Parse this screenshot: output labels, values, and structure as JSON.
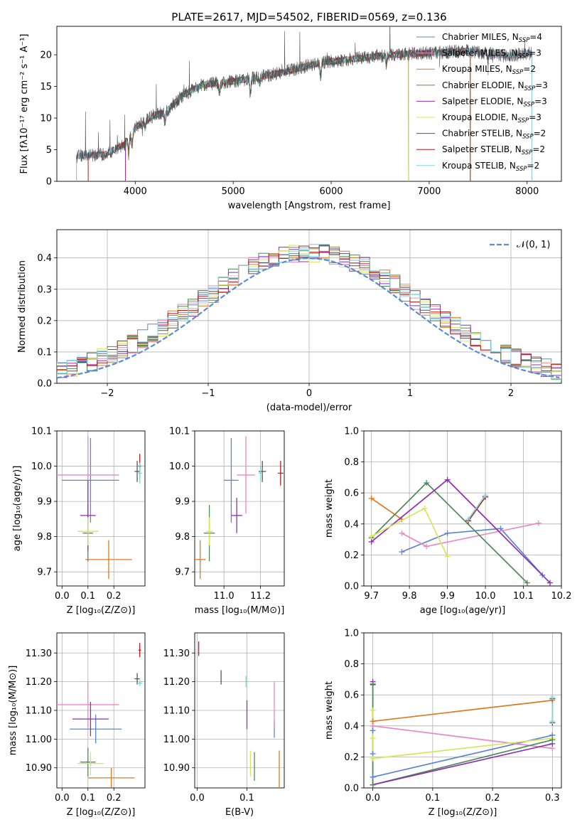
{
  "figure_title": "PLATE=2617, MJD=54502, FIBERID=0569, z=0.136",
  "colors": {
    "Chabrier MILES": "#5b84d4",
    "Salpeter MILES": "#e888c6",
    "Kroupa MILES": "#e07820",
    "Chabrier ELODIE": "#4f8a5a",
    "Salpeter ELODIE": "#8f2fb0",
    "Kroupa ELODIE": "#d5e65a",
    "Chabrier STELIB": "#555555",
    "Salpeter STELIB": "#b81c1c",
    "Kroupa STELIB": "#82d6dc",
    "normal": "#5b8bd6"
  },
  "legend_models": [
    {
      "key": "Chabrier MILES",
      "label": "Chabrier MILES, N",
      "sub": "SSP",
      "tail": "=4"
    },
    {
      "key": "Salpeter MILES",
      "label": "Salpeter MILES, N",
      "sub": "SSP",
      "tail": "=3"
    },
    {
      "key": "Kroupa MILES",
      "label": "Kroupa MILES, N",
      "sub": "SSP",
      "tail": "=2"
    },
    {
      "key": "Chabrier ELODIE",
      "label": "Chabrier ELODIE, N",
      "sub": "SSP",
      "tail": "=3"
    },
    {
      "key": "Salpeter ELODIE",
      "label": "Salpeter ELODIE, N",
      "sub": "SSP",
      "tail": "=3"
    },
    {
      "key": "Kroupa ELODIE",
      "label": "Kroupa ELODIE, N",
      "sub": "SSP",
      "tail": "=3"
    },
    {
      "key": "Chabrier STELIB",
      "label": "Chabrier STELIB, N",
      "sub": "SSP",
      "tail": "=2"
    },
    {
      "key": "Salpeter STELIB",
      "label": "Salpeter STELIB, N",
      "sub": "SSP",
      "tail": "=2"
    },
    {
      "key": "Kroupa STELIB",
      "label": "Kroupa STELIB, N",
      "sub": "SSP",
      "tail": "=2"
    }
  ],
  "chart_data": [
    {
      "id": "spectrum",
      "type": "line",
      "xlabel": "wavelength [Angstrom, rest frame]",
      "ylabel": "Flux [fλ10⁻¹⁷ erg cm⁻² s⁻¹ A⁻¹]",
      "xlim": [
        3200,
        8350
      ],
      "ylim": [
        0,
        24.5
      ],
      "xticks": [
        4000,
        5000,
        6000,
        7000,
        8000
      ],
      "yticks": [
        0,
        5,
        10,
        15,
        20
      ],
      "continuum_knots": [
        [
          3400,
          4.0
        ],
        [
          3700,
          4.3
        ],
        [
          3900,
          6.0
        ],
        [
          4000,
          8.5
        ],
        [
          4200,
          10.5
        ],
        [
          4300,
          10.8
        ],
        [
          4500,
          13.8
        ],
        [
          4700,
          15.3
        ],
        [
          5000,
          15.8
        ],
        [
          5200,
          16.3
        ],
        [
          5500,
          17.2
        ],
        [
          5900,
          18.8
        ],
        [
          6200,
          19.3
        ],
        [
          6600,
          20.0
        ],
        [
          7000,
          20.3
        ],
        [
          7400,
          20.6
        ],
        [
          7800,
          19.8
        ],
        [
          8050,
          20.3
        ]
      ],
      "absorption_features": [
        [
          3934,
          -2.5
        ],
        [
          3968,
          -2.0
        ],
        [
          4101,
          -1.2
        ],
        [
          4304,
          -1.8
        ],
        [
          4861,
          -1.8
        ],
        [
          5175,
          -2.6
        ],
        [
          5270,
          -1.0
        ],
        [
          5892,
          -2.4
        ],
        [
          6563,
          -1.6
        ],
        [
          7600,
          -1.0
        ]
      ],
      "model_edges": [
        {
          "key": "Kroupa MILES",
          "from": 3520,
          "to": 7420
        },
        {
          "key": "Chabrier MILES",
          "from": 3400,
          "to": 8050
        },
        {
          "key": "Salpeter MILES",
          "from": 3400,
          "to": 8050
        },
        {
          "key": "Chabrier ELODIE",
          "from": 3900,
          "to": 6790
        },
        {
          "key": "Salpeter ELODIE",
          "from": 3900,
          "to": 6790
        },
        {
          "key": "Kroupa ELODIE",
          "from": 3910,
          "to": 6790
        },
        {
          "key": "Salpeter STELIB",
          "from": 3520,
          "to": 7420
        },
        {
          "key": "Kroupa STELIB",
          "from": 3400,
          "to": 8050
        }
      ]
    },
    {
      "id": "residuals",
      "type": "histogram",
      "xlabel": "(data-model)/error",
      "ylabel": "Normed distribution",
      "xlim": [
        -2.5,
        2.5
      ],
      "ylim": [
        0,
        0.49
      ],
      "xticks": [
        -2,
        -1,
        0,
        1,
        2
      ],
      "yticks": [
        0.0,
        0.1,
        0.2,
        0.3,
        0.4
      ],
      "bin_width": 0.1,
      "legend": "𝒩(0, 1)",
      "reference": "normal(0,1)"
    },
    {
      "id": "age_vs_Z",
      "type": "errorbar",
      "xlabel": "Z [log₁₀(Z/Z⊙)]",
      "ylabel": "age  [log₁₀(age/yr)]",
      "xlim": [
        -0.02,
        0.32
      ],
      "ylim": [
        9.66,
        10.1
      ],
      "xticks": [
        0.0,
        0.1,
        0.2
      ],
      "yticks": [
        9.7,
        9.8,
        9.9,
        10.0,
        10.1
      ],
      "points": [
        {
          "key": "Chabrier MILES",
          "x": 0.11,
          "xerr": 0.11,
          "y": 9.96,
          "yerr": 0.12
        },
        {
          "key": "Salpeter MILES",
          "x": 0.1,
          "xerr": 0.12,
          "y": 9.975,
          "yerr": 0.11
        },
        {
          "key": "Kroupa MILES",
          "x": 0.18,
          "xerr": 0.09,
          "y": 9.735,
          "yerr": 0.055
        },
        {
          "key": "Chabrier ELODIE",
          "x": 0.1,
          "xerr": 0.02,
          "y": 9.81,
          "yerr": 0.08
        },
        {
          "key": "Salpeter ELODIE",
          "x": 0.1,
          "xerr": 0.03,
          "y": 9.86,
          "yerr": 0.1
        },
        {
          "key": "Kroupa ELODIE",
          "x": 0.1,
          "xerr": 0.04,
          "y": 9.815,
          "yerr": 0.04
        },
        {
          "key": "Chabrier STELIB",
          "x": 0.29,
          "xerr": 0.01,
          "y": 9.985,
          "yerr": 0.03
        },
        {
          "key": "Salpeter STELIB",
          "x": 0.3,
          "xerr": 0.005,
          "y": 10.0,
          "yerr": 0.035
        },
        {
          "key": "Kroupa STELIB",
          "x": 0.3,
          "xerr": 0.01,
          "y": 9.98,
          "yerr": 0.03
        }
      ]
    },
    {
      "id": "age_vs_mass",
      "type": "errorbar",
      "xlabel": "mass [log₁₀(M/M⊙)]",
      "ylabel": "",
      "xlim": [
        10.84,
        11.33
      ],
      "ylim": [
        9.66,
        10.1
      ],
      "xticks": [
        11.0,
        11.2
      ],
      "yticks": [
        9.7,
        9.8,
        9.9,
        10.0,
        10.1
      ],
      "points": [
        {
          "key": "Chabrier MILES",
          "x": 11.04,
          "xerr": 0.04,
          "y": 9.96,
          "yerr": 0.12
        },
        {
          "key": "Salpeter MILES",
          "x": 11.12,
          "xerr": 0.05,
          "y": 9.975,
          "yerr": 0.11
        },
        {
          "key": "Kroupa MILES",
          "x": 10.87,
          "xerr": 0.03,
          "y": 9.735,
          "yerr": 0.055
        },
        {
          "key": "Chabrier ELODIE",
          "x": 10.92,
          "xerr": 0.03,
          "y": 9.81,
          "yerr": 0.08
        },
        {
          "key": "Salpeter ELODIE",
          "x": 11.07,
          "xerr": 0.03,
          "y": 9.86,
          "yerr": 0.05
        },
        {
          "key": "Kroupa ELODIE",
          "x": 10.92,
          "xerr": 0.02,
          "y": 9.815,
          "yerr": 0.04
        },
        {
          "key": "Chabrier STELIB",
          "x": 11.21,
          "xerr": 0.02,
          "y": 9.985,
          "yerr": 0.03
        },
        {
          "key": "Salpeter STELIB",
          "x": 11.31,
          "xerr": 0.015,
          "y": 9.98,
          "yerr": 0.035
        },
        {
          "key": "Kroupa STELIB",
          "x": 11.2,
          "xerr": 0.01,
          "y": 9.98,
          "yerr": 0.02
        }
      ]
    },
    {
      "id": "massweight_vs_age",
      "type": "line",
      "xlabel": "age  [log₁₀(age/yr)]",
      "ylabel": "mass weight",
      "xlim": [
        9.68,
        10.2
      ],
      "ylim": [
        0,
        1.0
      ],
      "xticks": [
        9.7,
        9.8,
        9.9,
        10.0,
        10.1,
        10.2
      ],
      "yticks": [
        0.0,
        0.2,
        0.4,
        0.6,
        0.8,
        1.0
      ],
      "series": [
        {
          "key": "Chabrier MILES",
          "x": [
            9.78,
            9.9,
            10.04,
            10.15
          ],
          "y": [
            0.22,
            0.34,
            0.37,
            0.07
          ]
        },
        {
          "key": "Salpeter MILES",
          "x": [
            9.78,
            9.845,
            10.14
          ],
          "y": [
            0.34,
            0.255,
            0.405
          ]
        },
        {
          "key": "Kroupa MILES",
          "x": [
            9.7,
            9.78
          ],
          "y": [
            0.565,
            0.43
          ]
        },
        {
          "key": "Chabrier ELODIE",
          "x": [
            9.7,
            9.845,
            10.11
          ],
          "y": [
            0.31,
            0.665,
            0.02
          ]
        },
        {
          "key": "Salpeter ELODIE",
          "x": [
            9.7,
            9.9,
            10.17
          ],
          "y": [
            0.285,
            0.685,
            0.02
          ]
        },
        {
          "key": "Kroupa ELODIE",
          "x": [
            9.7,
            9.84,
            9.9
          ],
          "y": [
            0.32,
            0.5,
            0.19
          ]
        },
        {
          "key": "Chabrier STELIB",
          "x": [
            9.955,
            10.0
          ],
          "y": [
            0.42,
            0.575
          ]
        },
        {
          "key": "Salpeter STELIB",
          "x": [
            9.955,
            10.0
          ],
          "y": [
            0.42,
            0.575
          ]
        },
        {
          "key": "Kroupa STELIB",
          "x": [
            9.955,
            10.0
          ],
          "y": [
            0.43,
            0.585
          ]
        }
      ]
    },
    {
      "id": "mass_vs_Z",
      "type": "errorbar",
      "xlabel": "Z [log₁₀(Z/Z⊙)]",
      "ylabel": "mass [log₁₀(M/M⊙)]",
      "xlim": [
        -0.02,
        0.32
      ],
      "ylim": [
        10.83,
        11.37
      ],
      "xticks": [
        0.0,
        0.1,
        0.2
      ],
      "yticks": [
        10.9,
        11.0,
        11.1,
        11.2,
        11.3
      ],
      "points": [
        {
          "key": "Chabrier MILES",
          "x": 0.13,
          "xerr": 0.1,
          "y": 11.035,
          "yerr": 0.05
        },
        {
          "key": "Salpeter MILES",
          "x": 0.1,
          "xerr": 0.12,
          "y": 11.12,
          "yerr": 0.08
        },
        {
          "key": "Kroupa MILES",
          "x": 0.19,
          "xerr": 0.09,
          "y": 10.865,
          "yerr": 0.035
        },
        {
          "key": "Chabrier ELODIE",
          "x": 0.1,
          "xerr": 0.03,
          "y": 10.92,
          "yerr": 0.05
        },
        {
          "key": "Salpeter ELODIE",
          "x": 0.11,
          "xerr": 0.07,
          "y": 11.07,
          "yerr": 0.06
        },
        {
          "key": "Kroupa ELODIE",
          "x": 0.11,
          "xerr": 0.05,
          "y": 10.915,
          "yerr": 0.04
        },
        {
          "key": "Chabrier STELIB",
          "x": 0.29,
          "xerr": 0.01,
          "y": 11.21,
          "yerr": 0.02
        },
        {
          "key": "Salpeter STELIB",
          "x": 0.3,
          "xerr": 0.005,
          "y": 11.31,
          "yerr": 0.025
        },
        {
          "key": "Kroupa STELIB",
          "x": 0.3,
          "xerr": 0.01,
          "y": 11.195,
          "yerr": 0.01
        }
      ]
    },
    {
      "id": "mass_vs_ebv",
      "type": "errorbar",
      "xlabel": "E(B-V)",
      "ylabel": "",
      "xlim": [
        -0.005,
        0.175
      ],
      "ylim": [
        10.83,
        11.37
      ],
      "xticks": [
        0.0,
        0.1
      ],
      "yticks": [
        10.9,
        11.0,
        11.1,
        11.2,
        11.3
      ],
      "points": [
        {
          "key": "Chabrier MILES",
          "x": 0.155,
          "xerr": 0,
          "y": 11.035,
          "yerr": 0.03
        },
        {
          "key": "Salpeter MILES",
          "x": 0.155,
          "xerr": 0,
          "y": 11.12,
          "yerr": 0.08
        },
        {
          "key": "Kroupa MILES",
          "x": 0.165,
          "xerr": 0,
          "y": 10.89,
          "yerr": 0.07
        },
        {
          "key": "Chabrier ELODIE",
          "x": 0.115,
          "xerr": 0,
          "y": 10.905,
          "yerr": 0.05
        },
        {
          "key": "Salpeter ELODIE",
          "x": 0.1,
          "xerr": 0,
          "y": 11.085,
          "yerr": 0.05
        },
        {
          "key": "Kroupa ELODIE",
          "x": 0.107,
          "xerr": 0,
          "y": 10.915,
          "yerr": 0.045
        },
        {
          "key": "Chabrier STELIB",
          "x": 0.048,
          "xerr": 0,
          "y": 11.215,
          "yerr": 0.025
        },
        {
          "key": "Salpeter STELIB",
          "x": 0.003,
          "xerr": 0,
          "y": 11.315,
          "yerr": 0.025
        },
        {
          "key": "Kroupa STELIB",
          "x": 0.098,
          "xerr": 0,
          "y": 11.2,
          "yerr": 0.02
        }
      ]
    },
    {
      "id": "massweight_vs_Z",
      "type": "line",
      "xlabel": "Z [log₁₀(Z/Z⊙)]",
      "ylabel": "mass weight",
      "xlim": [
        -0.015,
        0.315
      ],
      "ylim": [
        0,
        1.0
      ],
      "xticks": [
        0.0,
        0.1,
        0.2,
        0.3
      ],
      "yticks": [
        0.0,
        0.2,
        0.4,
        0.6,
        0.8,
        1.0
      ],
      "series": [
        {
          "key": "Chabrier MILES",
          "x": [
            0.0,
            0.3
          ],
          "y": [
            0.07,
            0.34
          ]
        },
        {
          "key": "Salpeter MILES",
          "x": [
            0.0,
            0.3
          ],
          "y": [
            0.4,
            0.255
          ]
        },
        {
          "key": "Kroupa MILES",
          "x": [
            0.0,
            0.3
          ],
          "y": [
            0.43,
            0.565
          ]
        },
        {
          "key": "Chabrier ELODIE",
          "x": [
            0.0,
            0.3
          ],
          "y": [
            0.02,
            0.31
          ]
        },
        {
          "key": "Salpeter ELODIE",
          "x": [
            0.0,
            0.3
          ],
          "y": [
            0.02,
            0.285
          ]
        },
        {
          "key": "Kroupa ELODIE",
          "x": [
            0.0,
            0.3
          ],
          "y": [
            0.19,
            0.32
          ]
        }
      ],
      "markers": [
        {
          "key": "Chabrier MILES",
          "x": [
            0,
            0,
            0,
            0.3
          ],
          "y": [
            0.07,
            0.22,
            0.37,
            0.34
          ]
        },
        {
          "key": "Salpeter ELODIE",
          "x": [
            0,
            0,
            0
          ],
          "y": [
            0.02,
            0.685,
            0.67
          ]
        },
        {
          "key": "Chabrier ELODIE",
          "x": [
            0,
            0,
            0.3
          ],
          "y": [
            0.02,
            0.665,
            0.31
          ]
        },
        {
          "key": "Kroupa ELODIE",
          "x": [
            0,
            0,
            0
          ],
          "y": [
            0.19,
            0.5,
            0.32
          ]
        },
        {
          "key": "Chabrier STELIB",
          "x": [
            0.3,
            0.3
          ],
          "y": [
            0.42,
            0.575
          ]
        },
        {
          "key": "Kroupa STELIB",
          "x": [
            0.3,
            0.3
          ],
          "y": [
            0.43,
            0.585
          ]
        }
      ],
      "vlines": [
        {
          "key": "Salpeter ELODIE",
          "x": 0.0,
          "y0": 0.02,
          "y1": 0.69
        },
        {
          "key": "Chabrier ELODIE",
          "x": 0.0,
          "y0": 0.02,
          "y1": 0.66
        },
        {
          "key": "Kroupa ELODIE",
          "x": 0.0,
          "y0": 0.19,
          "y1": 0.5
        },
        {
          "key": "Chabrier STELIB",
          "x": 0.3,
          "y0": 0.42,
          "y1": 0.575
        },
        {
          "key": "Kroupa STELIB",
          "x": 0.3,
          "y0": 0.43,
          "y1": 0.585
        }
      ]
    }
  ]
}
